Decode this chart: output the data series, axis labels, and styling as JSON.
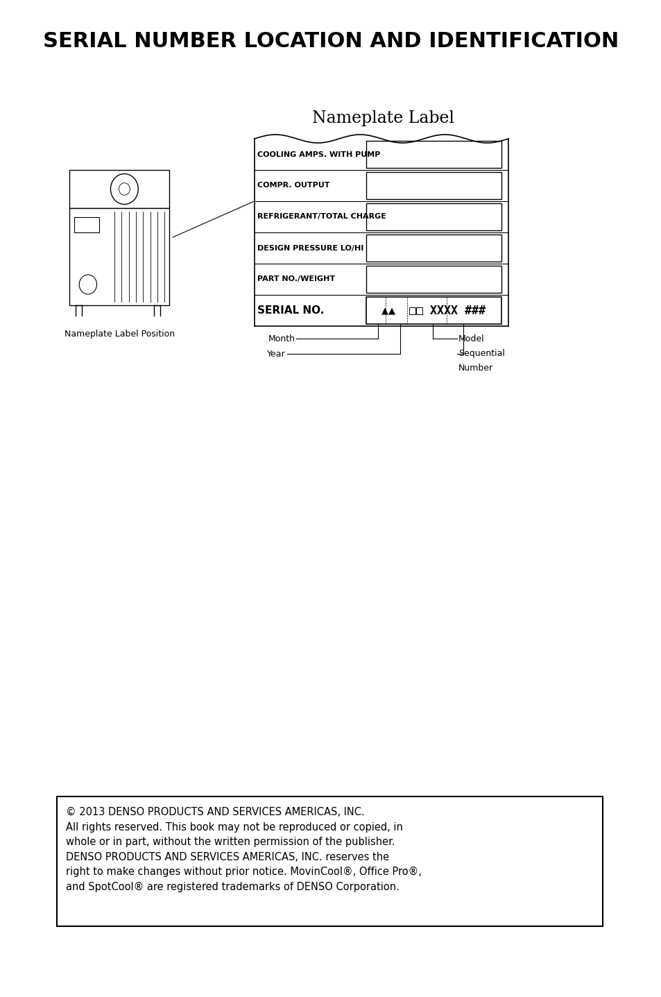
{
  "title": "SERIAL NUMBER LOCATION AND IDENTIFICATION",
  "nameplate_label_title": "Nameplate Label",
  "label_rows": [
    "COOLING AMPS. WITH PUMP",
    "COMPR. OUTPUT",
    "REFRIGERANT/TOTAL CHARGE",
    "DESIGN PRESSURE LO/HI",
    "PART NO./WEIGHT"
  ],
  "serial_label": "SERIAL NO.",
  "serial_code": "▲▲  □□ XXXX ###",
  "nameplate_pos_label": "Nameplate Label Position",
  "copyright_text": "© 2013 DENSO PRODUCTS AND SERVICES AMERICAS, INC.\nAll rights reserved. This book may not be reproduced or copied, in\nwhole or in part, without the written permission of the publisher.\nDENSO PRODUCTS AND SERVICES AMERICAS, INC. reserves the\nright to make changes without prior notice. MovinCool®, Office Pro®,\nand SpotCool® are registered trademarks of DENSO Corporation.",
  "bg_color": "#ffffff",
  "text_color": "#000000",
  "box_color": "#000000"
}
